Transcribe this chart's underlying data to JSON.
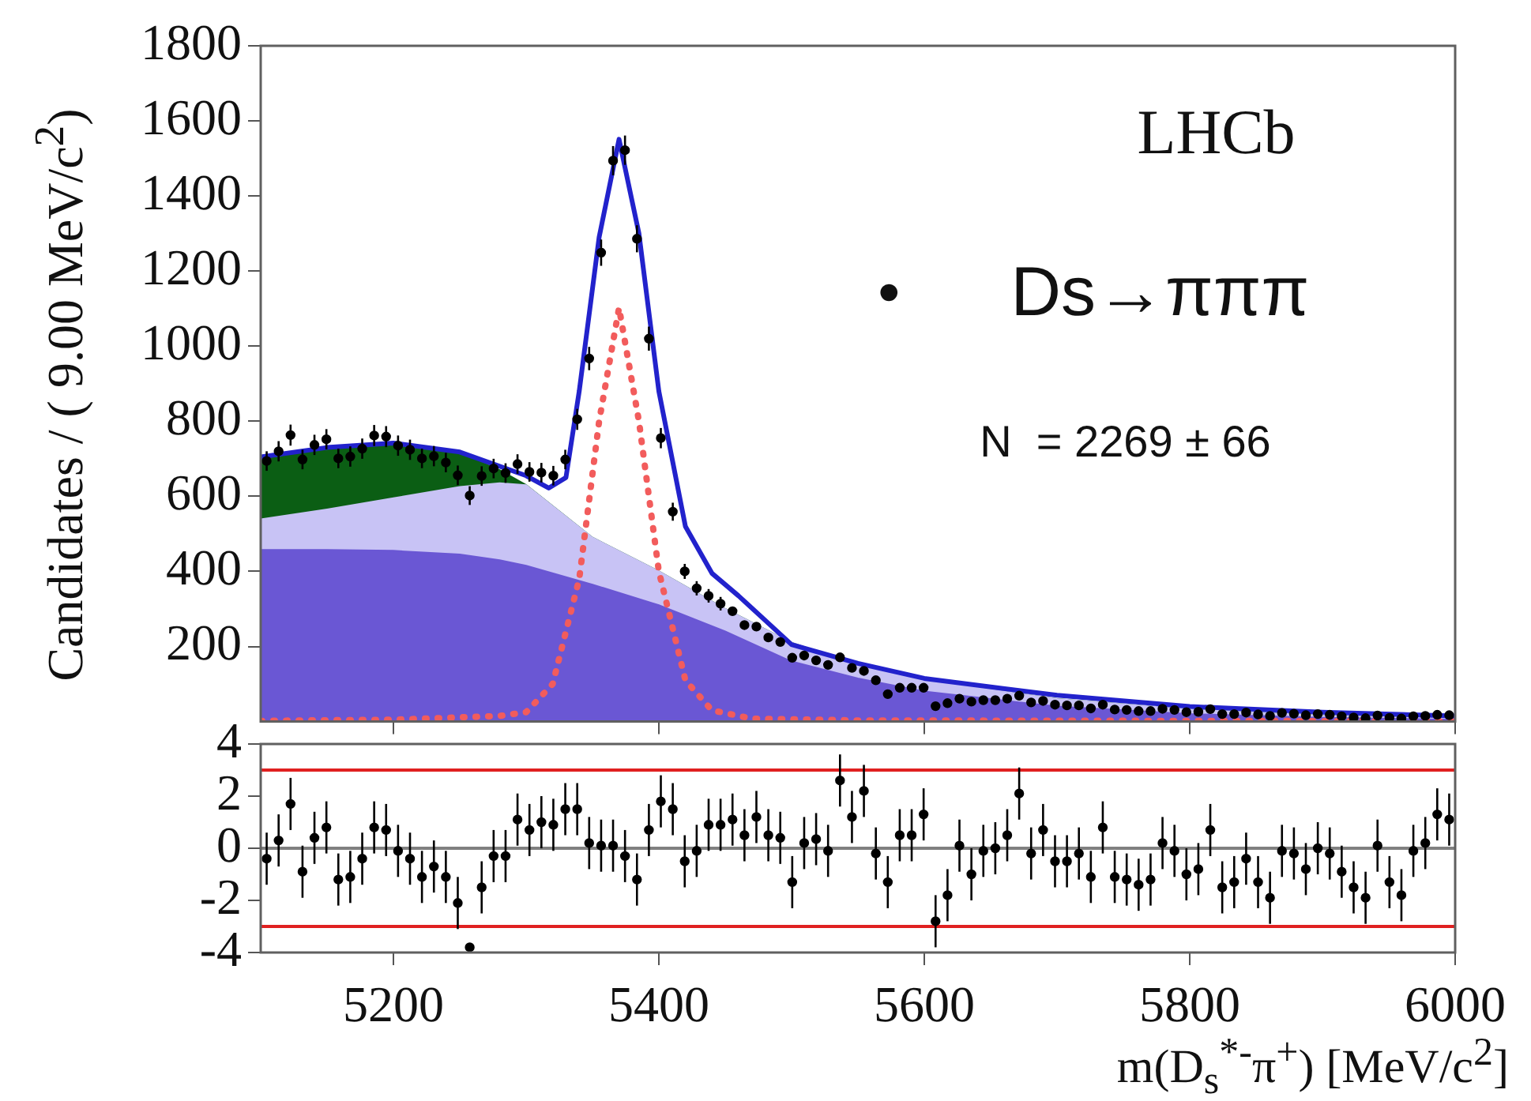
{
  "chart_data": [
    {
      "type": "area",
      "ylabel": "Candidates / ( 9.00 MeV/c$^{2}$)",
      "xlim": [
        5100,
        6000
      ],
      "xticks": [
        5200,
        5400,
        5600,
        5800,
        6000
      ],
      "ylim": [
        0,
        1800
      ],
      "yticks": [
        200,
        400,
        600,
        800,
        1000,
        1200,
        1400,
        1600,
        1800
      ],
      "tick_labels": "y",
      "legend": false,
      "annotations": [
        "LHCb",
        "•",
        "Ds→πππ",
        "N  = 2269 ± 66"
      ],
      "series": [
        {
          "color": "#0b5e14",
          "x": [
            5100,
            5150,
            5200,
            5250,
            5280,
            5300,
            5350,
            5400,
            5450,
            5500,
            5550,
            5600,
            5700,
            5800,
            5900,
            6000
          ],
          "values": [
            705,
            730,
            742,
            715,
            670,
            630,
            490,
            400,
            300,
            210,
            150,
            110,
            60,
            32,
            16,
            8
          ]
        },
        {
          "color": "#c8c3f5",
          "x": [
            5100,
            5150,
            5200,
            5250,
            5280,
            5300,
            5350,
            5400,
            5450,
            5500,
            5550,
            5600,
            5700,
            5800,
            5900,
            6000
          ],
          "values": [
            539,
            565,
            595,
            625,
            635,
            630,
            490,
            400,
            300,
            210,
            150,
            110,
            60,
            32,
            16,
            8
          ]
        },
        {
          "color": "#6a57d4",
          "x": [
            5100,
            5150,
            5200,
            5250,
            5280,
            5300,
            5350,
            5400,
            5450,
            5500,
            5550,
            5600,
            5700,
            5800,
            5900,
            6000
          ],
          "values": [
            457,
            457,
            455,
            445,
            430,
            415,
            365,
            310,
            240,
            160,
            115,
            80,
            40,
            20,
            10,
            5
          ]
        },
        {
          "type": "line",
          "color": "#f25c5c",
          "line_style": "dotted",
          "marker": "none",
          "x": [
            5100,
            5200,
            5280,
            5300,
            5320,
            5340,
            5355,
            5370,
            5385,
            5400,
            5420,
            5440,
            5470,
            5550,
            6000
          ],
          "values": [
            2,
            5,
            15,
            25,
            100,
            380,
            800,
            1102,
            800,
            400,
            110,
            30,
            8,
            3,
            1
          ]
        },
        {
          "type": "line",
          "color": "#2222cc",
          "line_style": "solid",
          "marker": "none",
          "x": [
            5100,
            5150,
            5200,
            5250,
            5300,
            5317,
            5330,
            5340,
            5355,
            5370,
            5385,
            5400,
            5420,
            5440,
            5460,
            5500,
            5550,
            5600,
            5700,
            5800,
            5900,
            6000
          ],
          "values": [
            705,
            730,
            742,
            718,
            655,
            622,
            650,
            880,
            1290,
            1551,
            1300,
            880,
            520,
            395,
            335,
            205,
            155,
            115,
            70,
            40,
            25,
            15
          ]
        },
        {
          "type": "scatter",
          "color": "#000000",
          "marker": "circle",
          "x": [
            5104.5,
            5113.5,
            5122.5,
            5131.5,
            5140.5,
            5149.5,
            5158.5,
            5167.5,
            5176.5,
            5185.5,
            5194.5,
            5203.5,
            5212.5,
            5221.5,
            5230.5,
            5239.5,
            5248.5,
            5257.5,
            5266.5,
            5275.5,
            5284.5,
            5293.5,
            5302.5,
            5311.5,
            5320.5,
            5329.5,
            5338.5,
            5347.5,
            5356.5,
            5365.5,
            5374.5,
            5383.5,
            5392.5,
            5401.5,
            5410.5,
            5419.5,
            5428.5,
            5437.5,
            5446.5,
            5455.5,
            5464.5,
            5473.5,
            5482.5,
            5491.5,
            5500.5,
            5509.5,
            5518.5,
            5527.5,
            5536.5,
            5545.5,
            5554.5,
            5563.5,
            5572.5,
            5581.5,
            5590.5,
            5599.5,
            5608.5,
            5617.5,
            5626.5,
            5635.5,
            5644.5,
            5653.5,
            5662.5,
            5671.5,
            5680.5,
            5689.5,
            5698.5,
            5707.5,
            5716.5,
            5725.5,
            5734.5,
            5743.5,
            5752.5,
            5761.5,
            5770.5,
            5779.5,
            5788.5,
            5797.5,
            5806.5,
            5815.5,
            5824.5,
            5833.5,
            5842.5,
            5851.5,
            5860.5,
            5869.5,
            5878.5,
            5887.5,
            5896.5,
            5905.5,
            5914.5,
            5923.5,
            5932.5,
            5941.5,
            5950.5,
            5959.5,
            5968.5,
            5977.5,
            5986.5,
            5995.5
          ],
          "values": [
            694,
            720,
            763,
            698,
            737,
            752,
            701,
            706,
            727,
            762,
            759,
            735,
            724,
            701,
            707,
            690,
            656,
            602,
            654,
            674,
            662,
            686,
            665,
            663,
            655,
            698,
            805,
            967,
            1249,
            1494,
            1522,
            1286,
            1020,
            755,
            559,
            400,
            355,
            335,
            314,
            294,
            257,
            253,
            224,
            212,
            170,
            176,
            163,
            151,
            171,
            143,
            135,
            110,
            73,
            90,
            90,
            90,
            41,
            49,
            61,
            53,
            57,
            57,
            61,
            69,
            51,
            55,
            45,
            43,
            43,
            35,
            45,
            32,
            31,
            28,
            28,
            34,
            31,
            25,
            26,
            33,
            20,
            20,
            24,
            19,
            15,
            23,
            21,
            17,
            20,
            18,
            14,
            11,
            9,
            16,
            10,
            8,
            14,
            15,
            18,
            17
          ],
          "errors": [
            26,
            27,
            28,
            26,
            27,
            27,
            26,
            27,
            27,
            28,
            28,
            27,
            27,
            26,
            27,
            26,
            26,
            25,
            26,
            26,
            26,
            26,
            26,
            26,
            26,
            26,
            28,
            31,
            35,
            39,
            39,
            36,
            32,
            27,
            24,
            20,
            19,
            18,
            18,
            null,
            null,
            null,
            null,
            null,
            null,
            null,
            null,
            null,
            null,
            null,
            null,
            null,
            null,
            null,
            null,
            null,
            null,
            null,
            null,
            null,
            null,
            null,
            null,
            null,
            null,
            null,
            null,
            null,
            null,
            null,
            null,
            null,
            null,
            null,
            null,
            null,
            null,
            null,
            null,
            null,
            null,
            null,
            null,
            null,
            null,
            null,
            null,
            null,
            null,
            null,
            null,
            null,
            null,
            null,
            null,
            null,
            null,
            null,
            null,
            null
          ]
        }
      ]
    },
    {
      "type": "scatter",
      "xlabel": "m(D$_{s}$$^{*-}$π$^{+}$) [MeV/c$^{2}$]",
      "xlim": [
        5100,
        6000
      ],
      "xticks": [
        5200,
        5400,
        5600,
        5800,
        6000
      ],
      "ylim": [
        -4,
        4
      ],
      "yticks": [
        -4,
        -2,
        0,
        2,
        4
      ],
      "legend": false,
      "ref_lines": [
        {
          "axis": "y",
          "value": 3,
          "color": "#e02020"
        },
        {
          "axis": "y",
          "value": -3,
          "color": "#e02020"
        },
        {
          "axis": "y",
          "value": 0,
          "color": "#808080"
        }
      ],
      "series": [
        {
          "color": "#000000",
          "marker": "circle",
          "x": [
            5104.5,
            5113.5,
            5122.5,
            5131.5,
            5140.5,
            5149.5,
            5158.5,
            5167.5,
            5176.5,
            5185.5,
            5194.5,
            5203.5,
            5212.5,
            5221.5,
            5230.5,
            5239.5,
            5248.5,
            5257.5,
            5266.5,
            5275.5,
            5284.5,
            5293.5,
            5302.5,
            5311.5,
            5320.5,
            5329.5,
            5338.5,
            5347.5,
            5356.5,
            5365.5,
            5374.5,
            5383.5,
            5392.5,
            5401.5,
            5410.5,
            5419.5,
            5428.5,
            5437.5,
            5446.5,
            5455.5,
            5464.5,
            5473.5,
            5482.5,
            5491.5,
            5500.5,
            5509.5,
            5518.5,
            5527.5,
            5536.5,
            5545.5,
            5554.5,
            5563.5,
            5572.5,
            5581.5,
            5590.5,
            5599.5,
            5608.5,
            5617.5,
            5626.5,
            5635.5,
            5644.5,
            5653.5,
            5662.5,
            5671.5,
            5680.5,
            5689.5,
            5698.5,
            5707.5,
            5716.5,
            5725.5,
            5734.5,
            5743.5,
            5752.5,
            5761.5,
            5770.5,
            5779.5,
            5788.5,
            5797.5,
            5806.5,
            5815.5,
            5824.5,
            5833.5,
            5842.5,
            5851.5,
            5860.5,
            5869.5,
            5878.5,
            5887.5,
            5896.5,
            5905.5,
            5914.5,
            5923.5,
            5932.5,
            5941.5,
            5950.5,
            5959.5,
            5968.5,
            5977.5,
            5986.5,
            5995.5
          ],
          "values": [
            -0.4,
            0.3,
            1.7,
            -0.9,
            0.4,
            0.8,
            -1.2,
            -1.1,
            -0.4,
            0.8,
            0.7,
            -0.1,
            -0.4,
            -1.1,
            -0.7,
            -1.1,
            -2.1,
            -3.8,
            -1.5,
            -0.3,
            -0.3,
            1.1,
            0.7,
            1.0,
            0.9,
            1.5,
            1.5,
            0.2,
            0.1,
            0.1,
            -0.3,
            -1.2,
            0.7,
            1.8,
            1.5,
            -0.5,
            -0.1,
            0.9,
            0.9,
            1.1,
            0.5,
            1.2,
            0.5,
            0.4,
            -1.3,
            0.2,
            0.35,
            -0.1,
            2.6,
            1.2,
            2.2,
            -0.2,
            -1.3,
            0.5,
            0.5,
            1.3,
            -2.8,
            -1.8,
            0.1,
            -1.0,
            -0.1,
            0.0,
            0.5,
            2.1,
            -0.2,
            0.7,
            -0.5,
            -0.5,
            -0.2,
            -1.1,
            0.8,
            -1.1,
            -1.2,
            -1.4,
            -1.2,
            0.2,
            -0.1,
            -1.0,
            -0.8,
            0.7,
            -1.5,
            -1.3,
            -0.4,
            -1.3,
            -1.9,
            -0.1,
            -0.2,
            -0.8,
            0.0,
            -0.2,
            -0.9,
            -1.5,
            -1.9,
            0.1,
            -1.3,
            -1.8,
            -0.1,
            0.2,
            1.3,
            1.1
          ],
          "errors": [
            1,
            1,
            1,
            1,
            1,
            1,
            1,
            1,
            1,
            1,
            1,
            1,
            1,
            1,
            1,
            1,
            1,
            null,
            1,
            1,
            1,
            1,
            1,
            1,
            1,
            1,
            1,
            1,
            1,
            1,
            1,
            1,
            1,
            1,
            1,
            1,
            1,
            1,
            1,
            1,
            1,
            1,
            1,
            1,
            1,
            1,
            1,
            1,
            1,
            1,
            1,
            1,
            1,
            1,
            1,
            1,
            1,
            1,
            1,
            1,
            1,
            1,
            1,
            1,
            1,
            1,
            1,
            1,
            1,
            1,
            1,
            1,
            1,
            1,
            1,
            1,
            1,
            1,
            1,
            1,
            1,
            1,
            1,
            1,
            1,
            1,
            1,
            1,
            1,
            1,
            1,
            1,
            1,
            1,
            1,
            1,
            1,
            1,
            1,
            1
          ]
        }
      ]
    }
  ]
}
